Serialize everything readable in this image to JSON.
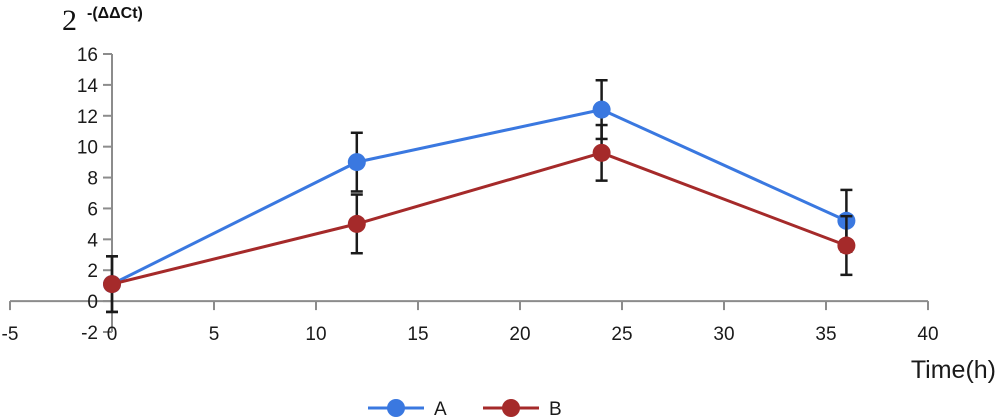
{
  "chart_data": {
    "type": "line",
    "title": "",
    "ylabel": {
      "base": "2",
      "exponent": "-(ΔΔCt)"
    },
    "xlabel": "Time(h)",
    "x": [
      0,
      12,
      24,
      36
    ],
    "xlim": [
      -5,
      40
    ],
    "ylim": [
      -2,
      16
    ],
    "xticks": [
      -5,
      0,
      5,
      10,
      15,
      20,
      25,
      30,
      35,
      40
    ],
    "yticks": [
      -2,
      0,
      2,
      4,
      6,
      8,
      10,
      12,
      14,
      16
    ],
    "xtick_labels": [
      "-5",
      "0",
      "5",
      "10",
      "15",
      "20",
      "25",
      "30",
      "35",
      "40"
    ],
    "ytick_labels": [
      "-2",
      "0",
      "2",
      "4",
      "6",
      "8",
      "10",
      "12",
      "14",
      "16"
    ],
    "grid": false,
    "legend_position": "bottom",
    "series": [
      {
        "name": "A",
        "color": "#3a78e0",
        "values": [
          1.1,
          9.0,
          12.4,
          5.2
        ],
        "errors": [
          1.8,
          1.9,
          1.9,
          2.0
        ]
      },
      {
        "name": "B",
        "color": "#a52a2a",
        "values": [
          1.1,
          5.0,
          9.6,
          3.6
        ],
        "errors": [
          1.8,
          1.9,
          1.8,
          1.9
        ]
      }
    ]
  }
}
